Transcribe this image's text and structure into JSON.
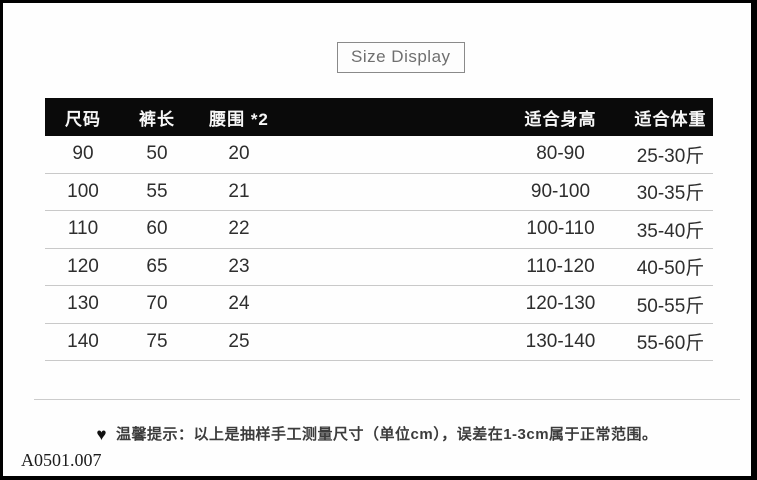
{
  "title": "Size Display",
  "table": {
    "header_bg": "#0a0a0a",
    "header_text_color": "#f7f7f7",
    "headers": [
      "尺码",
      "裤长",
      "腰围 *2",
      "适合身高",
      "适合体重"
    ],
    "rows": [
      [
        "90",
        "50",
        "20",
        "80-90",
        "25-30斤"
      ],
      [
        "100",
        "55",
        "21",
        "90-100",
        "30-35斤"
      ],
      [
        "110",
        "60",
        "22",
        "100-110",
        "35-40斤"
      ],
      [
        "120",
        "65",
        "23",
        "110-120",
        "40-50斤"
      ],
      [
        "130",
        "70",
        "24",
        "120-130",
        "50-55斤"
      ],
      [
        "140",
        "75",
        "25",
        "130-140",
        "55-60斤"
      ]
    ]
  },
  "footer": {
    "heart_icon": "♥",
    "tip": "温馨提示：以上是抽样手工测量尺寸（单位cm），误差在1-3cm属于正常范围。",
    "code": "A0501.007"
  }
}
